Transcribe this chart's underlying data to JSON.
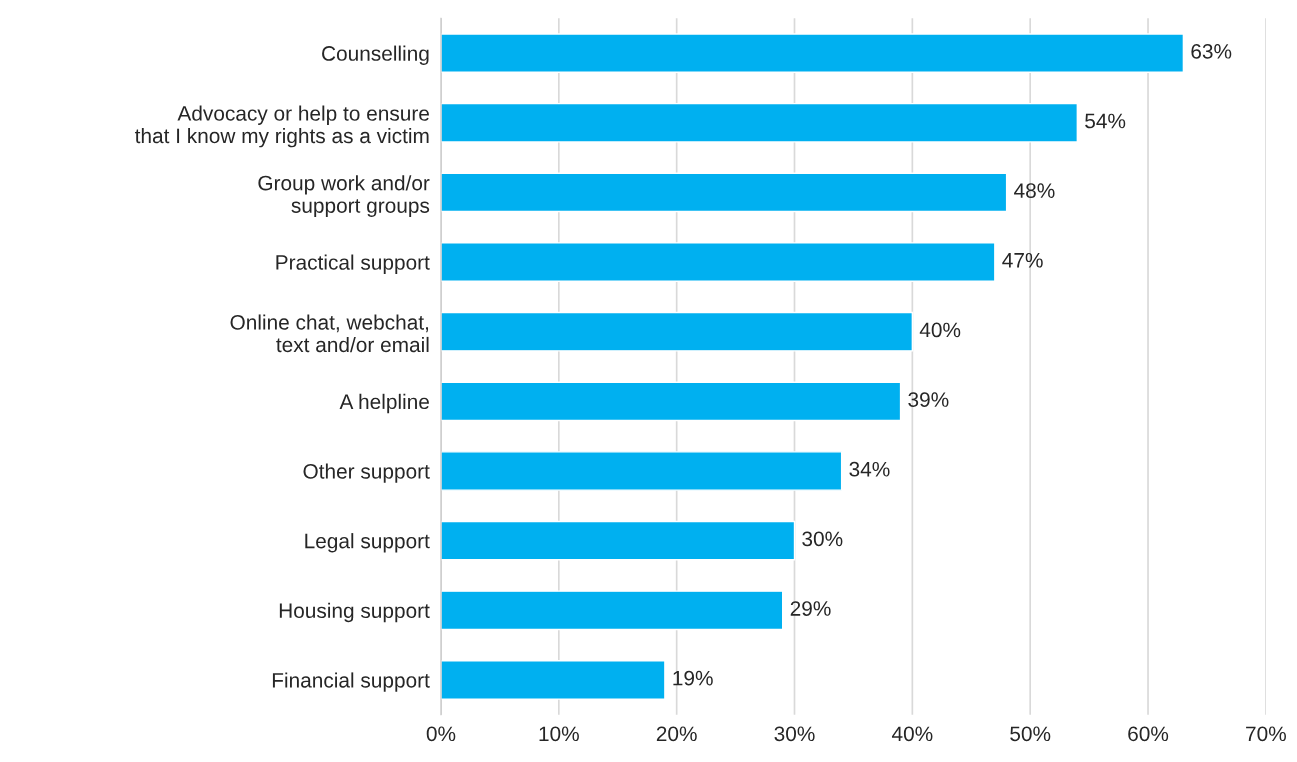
{
  "chart_data": {
    "type": "bar",
    "orientation": "horizontal",
    "categories": [
      "Counselling",
      "Advocacy or help to ensure\nthat I know my rights as a victim",
      "Group work and/or\nsupport groups",
      "Practical support",
      "Online chat, webchat,\ntext and/or email",
      "A helpline",
      "Other support",
      "Legal support",
      "Housing support",
      "Financial support"
    ],
    "values": [
      63,
      54,
      48,
      47,
      40,
      39,
      34,
      30,
      29,
      19
    ],
    "value_labels": [
      "63%",
      "54%",
      "48%",
      "47%",
      "40%",
      "39%",
      "34%",
      "30%",
      "29%",
      "19%"
    ],
    "color": "#00b0f0",
    "xlim": [
      0,
      70
    ],
    "xticks": [
      {
        "value": 0,
        "label": "0%"
      },
      {
        "value": 10,
        "label": "10%"
      },
      {
        "value": 20,
        "label": "20%"
      },
      {
        "value": 30,
        "label": "30%"
      },
      {
        "value": 40,
        "label": "40%"
      },
      {
        "value": 50,
        "label": "50%"
      },
      {
        "value": 60,
        "label": "60%"
      },
      {
        "value": 70,
        "label": "70%"
      }
    ],
    "grid": "x"
  }
}
